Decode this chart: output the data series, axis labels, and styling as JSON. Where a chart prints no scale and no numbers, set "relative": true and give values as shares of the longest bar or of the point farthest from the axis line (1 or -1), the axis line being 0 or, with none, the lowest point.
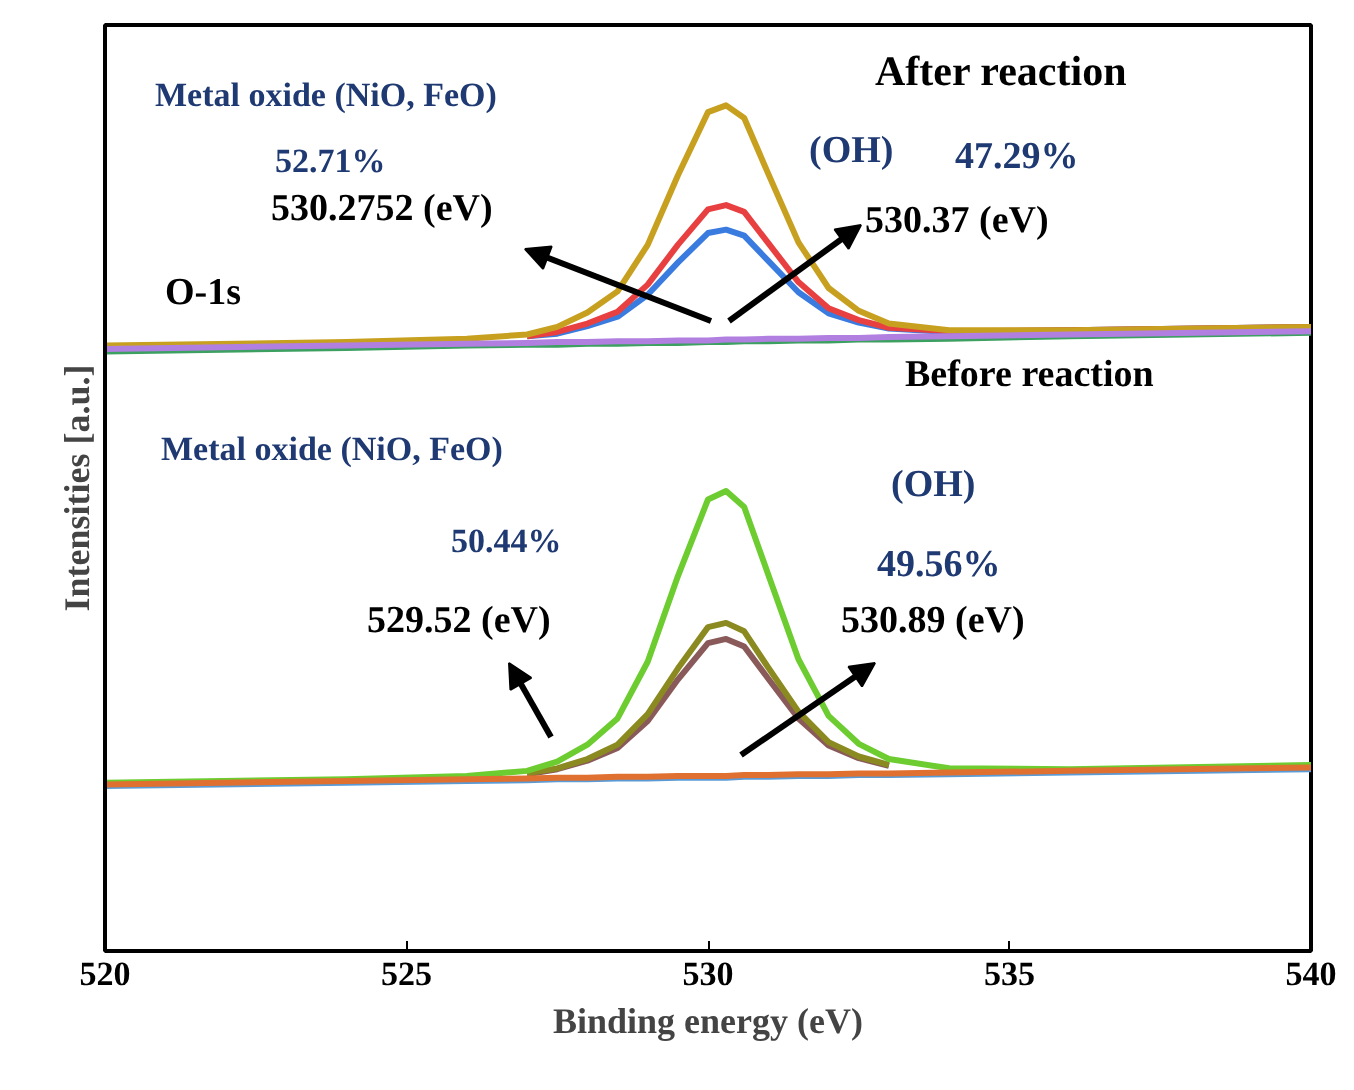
{
  "chart_data": {
    "type": "line",
    "relative": true,
    "xlabel": "Binding energy (eV)",
    "ylabel": "Intensities [a.u.]",
    "xlim": [
      520,
      540
    ],
    "xticks": [
      520,
      525,
      530,
      535,
      540
    ],
    "tick_labels": "x",
    "x": [
      520,
      524,
      526,
      527,
      527.5,
      528,
      528.5,
      529,
      529.5,
      530,
      530.3,
      530.6,
      531,
      531.5,
      532,
      532.5,
      533,
      534,
      536,
      540
    ],
    "series": [
      {
        "color": "#3a7be0",
        "values": [
          null,
          null,
          null,
          0.727,
          0.73,
          0.739,
          0.75,
          0.776,
          0.814,
          0.849,
          0.853,
          0.846,
          0.816,
          0.779,
          0.754,
          0.743,
          0.736,
          0.732,
          0.734,
          0.738
        ]
      },
      {
        "color": "#e84040",
        "values": [
          null,
          null,
          null,
          0.727,
          0.732,
          0.742,
          0.756,
          0.788,
          0.835,
          0.877,
          0.882,
          0.874,
          0.837,
          0.791,
          0.76,
          0.746,
          0.737,
          0.733,
          0.734,
          0.738
        ]
      },
      {
        "color": "#c8a020",
        "values": [
          0.716,
          0.72,
          0.724,
          0.729,
          0.738,
          0.755,
          0.78,
          0.835,
          0.917,
          0.992,
          1.0,
          0.985,
          0.919,
          0.838,
          0.784,
          0.757,
          0.742,
          0.734,
          0.734,
          0.738
        ]
      },
      {
        "color": "#3ca060",
        "values": [
          0.709,
          0.713,
          0.716,
          0.717,
          0.717,
          0.718,
          0.718,
          0.719,
          0.719,
          0.72,
          0.72,
          0.721,
          0.721,
          0.722,
          0.722,
          0.723,
          0.723,
          0.724,
          0.727,
          0.731
        ]
      },
      {
        "color": "#b07fe0",
        "values": [
          0.712,
          0.716,
          0.718,
          0.719,
          0.72,
          0.72,
          0.721,
          0.721,
          0.722,
          0.722,
          0.723,
          0.723,
          0.724,
          0.724,
          0.725,
          0.725,
          0.726,
          0.727,
          0.729,
          0.733
        ]
      },
      {
        "color": "#8a5a5a",
        "values": [
          null,
          null,
          null,
          0.209,
          0.215,
          0.225,
          0.24,
          0.272,
          0.321,
          0.364,
          0.369,
          0.36,
          0.322,
          0.275,
          0.243,
          0.228,
          0.219,
          null,
          null,
          null
        ]
      },
      {
        "color": "#8a8a20",
        "values": [
          null,
          null,
          null,
          0.21,
          0.216,
          0.227,
          0.244,
          0.28,
          0.334,
          0.383,
          0.388,
          0.378,
          0.335,
          0.283,
          0.247,
          0.23,
          0.22,
          null,
          null,
          null
        ]
      },
      {
        "color": "#6ccc30",
        "values": [
          0.199,
          0.203,
          0.207,
          0.213,
          0.224,
          0.244,
          0.275,
          0.342,
          0.443,
          0.534,
          0.544,
          0.525,
          0.445,
          0.345,
          0.278,
          0.245,
          0.227,
          0.216,
          0.215,
          0.22
        ]
      },
      {
        "color": "#5b9bd5",
        "values": [
          0.195,
          0.199,
          0.201,
          0.202,
          0.203,
          0.203,
          0.204,
          0.204,
          0.205,
          0.205,
          0.205,
          0.206,
          0.206,
          0.207,
          0.207,
          0.208,
          0.208,
          0.209,
          0.211,
          0.215
        ]
      },
      {
        "color": "#e07030",
        "values": [
          0.197,
          0.201,
          0.203,
          0.204,
          0.205,
          0.205,
          0.206,
          0.206,
          0.207,
          0.207,
          0.207,
          0.208,
          0.208,
          0.209,
          0.209,
          0.21,
          0.21,
          0.211,
          0.213,
          0.217
        ]
      }
    ],
    "annotations": [
      "After reaction",
      "Metal oxide (NiO, FeO)",
      "52.71%",
      "530.2752 (eV)",
      "(OH)",
      "47.29%",
      "530.37 (eV)",
      "O-1s",
      "Before reaction",
      "Metal oxide (NiO, FeO)",
      "(OH)",
      "50.44%",
      "49.56%",
      "529.52 (eV)",
      "530.89 (eV)"
    ]
  }
}
